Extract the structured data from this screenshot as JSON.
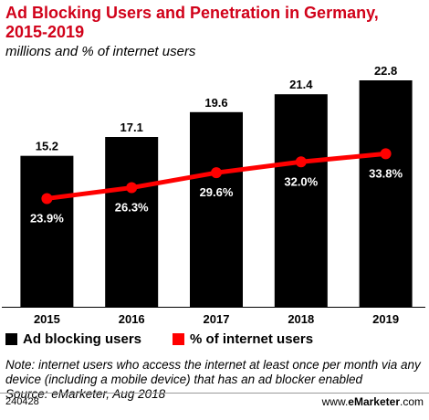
{
  "header": {
    "title": "Ad Blocking Users and Penetration in Germany, 2015-2019",
    "subtitle": "millions and % of internet users"
  },
  "chart_data": {
    "type": "bar",
    "categories": [
      "2015",
      "2016",
      "2017",
      "2018",
      "2019"
    ],
    "series": [
      {
        "name": "Ad blocking users",
        "type": "bar",
        "values": [
          15.2,
          17.1,
          19.6,
          21.4,
          22.8
        ],
        "labels": [
          "15.2",
          "17.1",
          "19.6",
          "21.4",
          "22.8"
        ],
        "color": "#000000"
      },
      {
        "name": "% of internet users",
        "type": "line",
        "values": [
          23.9,
          26.3,
          29.6,
          32.0,
          33.8
        ],
        "labels": [
          "23.9%",
          "26.3%",
          "29.6%",
          "32.0%",
          "33.8%"
        ],
        "color": "#ff0000"
      }
    ],
    "ylim": [
      0,
      22.8
    ],
    "line_ylim": [
      0,
      50
    ],
    "grid": false,
    "legend_placement": "bottom-left"
  },
  "legend": {
    "bars_label": "Ad blocking users",
    "line_label": "% of internet users"
  },
  "footer": {
    "note": "Note: internet users who access the internet at least once per month via any device (including a mobile device) that has an ad blocker enabled",
    "source": "Source: eMarketer, Aug 2018",
    "code": "240428",
    "brand_prefix": "www.",
    "brand_name": "eMarketer",
    "brand_suffix": ".com"
  }
}
